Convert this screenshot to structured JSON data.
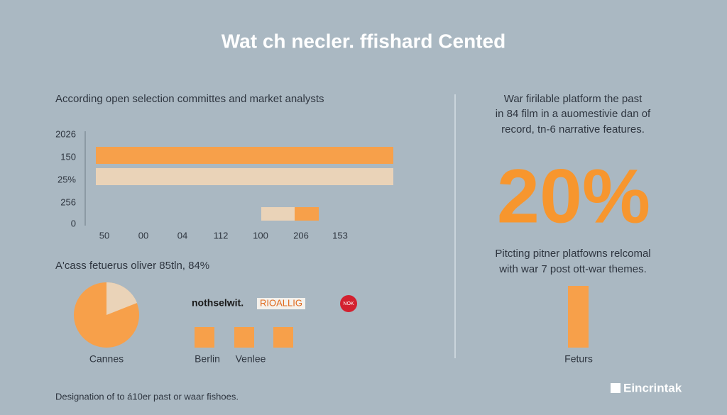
{
  "title": "Wat ch necler. ffishard Cented",
  "left_panel": {
    "heading": "According open selection committes and market analysts",
    "y_labels": [
      "2026",
      "150",
      "25%",
      "256",
      "0"
    ],
    "x_labels": [
      "50",
      "00",
      "04",
      "112",
      "100",
      "206",
      "153"
    ],
    "subheading": "A'cass fetuerus oliver 85tln, 84%",
    "pie_label": "Cannes",
    "logos": [
      "nothselwit.",
      "RIOALLIG",
      "NOK"
    ],
    "festivals": [
      "Berlin",
      "Venlee"
    ],
    "footer": "Designation of to á10er past or waar fishoes."
  },
  "right_panel": {
    "intro": [
      "War firilable platform the past",
      "in 84 film in a auomestivie dan of",
      "record, tn-6 narrative features."
    ],
    "big_stat": "20%",
    "caption": [
      "Pitcting pitner platfowns relcomal",
      "with war 7 post ott-war themes."
    ],
    "bar_label": "Feturs"
  },
  "brand": "Eincrintak"
}
